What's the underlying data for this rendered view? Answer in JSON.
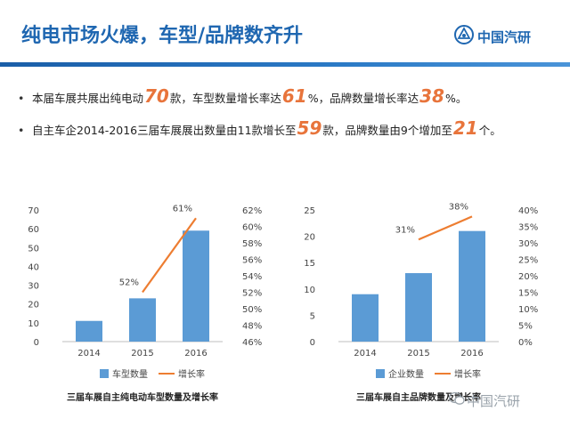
{
  "slide": {
    "title": "纯电市场火爆，车型/品牌数齐升",
    "logo_text": "中国汽研",
    "watermark": "中国汽研"
  },
  "bullets": [
    {
      "p1": "本届车展共展出纯电动",
      "h1": "70",
      "p2": "款，车型数量增长率达",
      "h2": "61",
      "p3": "%，品牌数量增长率达",
      "h3": "38",
      "p4": "%。"
    },
    {
      "p1": "自主车企2014-2016三届车展展出数量由11款增长至",
      "h1": "59",
      "p2": "款，品牌数量由9个增加至",
      "h2": "21",
      "p3": "个。",
      "h3": "",
      "p4": ""
    }
  ],
  "chart_data": [
    {
      "type": "bar+line",
      "title": "三届车展自主纯电动车型数量及增长率",
      "categories": [
        "2014",
        "2015",
        "2016"
      ],
      "series": [
        {
          "name": "车型数量",
          "axis": "left",
          "kind": "bar",
          "values": [
            11,
            23,
            59
          ]
        },
        {
          "name": "增长率",
          "axis": "right",
          "kind": "line",
          "values": [
            null,
            0.52,
            0.61
          ],
          "labels": [
            "",
            "52%",
            "61%"
          ]
        }
      ],
      "left_axis": {
        "min": 0,
        "max": 70,
        "ticks": [
          "0",
          "10",
          "20",
          "30",
          "40",
          "50",
          "60",
          "70"
        ]
      },
      "right_axis": {
        "min": 0.46,
        "max": 0.62,
        "ticks": [
          "46%",
          "48%",
          "50%",
          "52%",
          "54%",
          "56%",
          "58%",
          "60%",
          "62%"
        ]
      },
      "colors": {
        "bar": "#5b9bd5",
        "line": "#ed7d31"
      }
    },
    {
      "type": "bar+line",
      "title": "三届车展自主品牌数量及增长率",
      "categories": [
        "2014",
        "2015",
        "2016"
      ],
      "series": [
        {
          "name": "企业数量",
          "axis": "left",
          "kind": "bar",
          "values": [
            9,
            13,
            21
          ]
        },
        {
          "name": "增长率",
          "axis": "right",
          "kind": "line",
          "values": [
            null,
            0.31,
            0.38
          ],
          "labels": [
            "",
            "31%",
            "38%"
          ]
        }
      ],
      "left_axis": {
        "min": 0,
        "max": 25,
        "ticks": [
          "0",
          "5",
          "10",
          "15",
          "20",
          "25"
        ]
      },
      "right_axis": {
        "min": 0,
        "max": 0.4,
        "ticks": [
          "0%",
          "5%",
          "10%",
          "15%",
          "20%",
          "25%",
          "30%",
          "35%",
          "40%"
        ]
      },
      "colors": {
        "bar": "#5b9bd5",
        "line": "#ed7d31"
      }
    }
  ]
}
